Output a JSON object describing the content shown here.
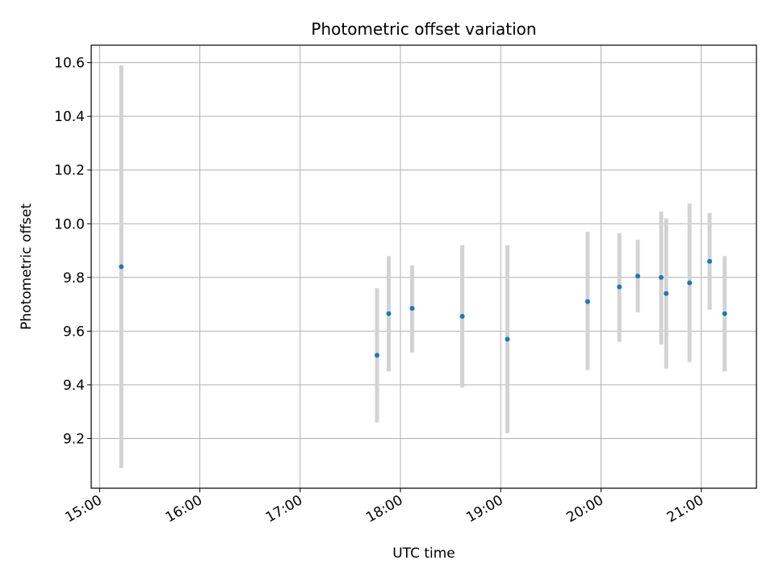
{
  "chart_data": {
    "type": "scatter",
    "title": "Photometric offset variation",
    "xlabel": "UTC time",
    "ylabel": "Photometric offset",
    "x_tick_labels": [
      "15:00",
      "16:00",
      "17:00",
      "18:00",
      "19:00",
      "20:00",
      "21:00"
    ],
    "y_tick_labels": [
      "9.2",
      "9.4",
      "9.6",
      "9.8",
      "10.0",
      "10.2",
      "10.4",
      "10.6"
    ],
    "y_ticks": [
      9.2,
      9.4,
      9.6,
      9.8,
      10.0,
      10.2,
      10.4,
      10.6
    ],
    "xlim": [
      "14:55",
      "21:33"
    ],
    "ylim": [
      9.015,
      10.665
    ],
    "grid": true,
    "errorbar_color": "#d3d3d3",
    "point_color": "#1f77b4",
    "points": [
      {
        "x": "15:13",
        "y": 9.84,
        "yerr_low": 9.09,
        "yerr_high": 10.59
      },
      {
        "x": "17:46",
        "y": 9.51,
        "yerr_low": 9.26,
        "yerr_high": 9.76
      },
      {
        "x": "17:53",
        "y": 9.665,
        "yerr_low": 9.45,
        "yerr_high": 9.88
      },
      {
        "x": "18:07",
        "y": 9.685,
        "yerr_low": 9.52,
        "yerr_high": 9.845
      },
      {
        "x": "18:37",
        "y": 9.655,
        "yerr_low": 9.39,
        "yerr_high": 9.92
      },
      {
        "x": "19:04",
        "y": 9.57,
        "yerr_low": 9.22,
        "yerr_high": 9.92
      },
      {
        "x": "19:52",
        "y": 9.71,
        "yerr_low": 9.455,
        "yerr_high": 9.97
      },
      {
        "x": "20:11",
        "y": 9.765,
        "yerr_low": 9.56,
        "yerr_high": 9.965
      },
      {
        "x": "20:22",
        "y": 9.805,
        "yerr_low": 9.67,
        "yerr_high": 9.94
      },
      {
        "x": "20:36",
        "y": 9.8,
        "yerr_low": 9.55,
        "yerr_high": 10.045
      },
      {
        "x": "20:39",
        "y": 9.74,
        "yerr_low": 9.46,
        "yerr_high": 10.02
      },
      {
        "x": "20:53",
        "y": 9.78,
        "yerr_low": 9.485,
        "yerr_high": 10.075
      },
      {
        "x": "21:05",
        "y": 9.86,
        "yerr_low": 9.68,
        "yerr_high": 10.04
      },
      {
        "x": "21:14",
        "y": 9.665,
        "yerr_low": 9.45,
        "yerr_high": 9.88
      }
    ]
  }
}
